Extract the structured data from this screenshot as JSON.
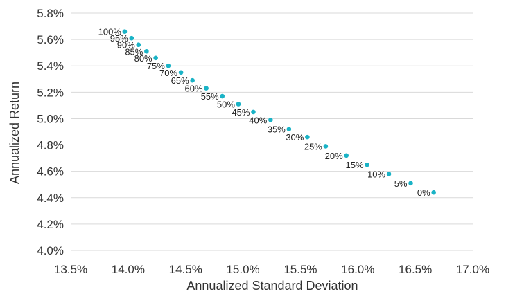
{
  "chart_data": {
    "type": "scatter",
    "xlabel": "Annualized Standard Deviation",
    "ylabel": "Annualized Return",
    "xlim": [
      13.5,
      17.0
    ],
    "ylim": [
      4.0,
      5.8
    ],
    "x_ticks": [
      "13.5%",
      "14.0%",
      "14.5%",
      "15.0%",
      "15.5%",
      "16.0%",
      "16.5%",
      "17.0%"
    ],
    "y_ticks": [
      "4.0%",
      "4.2%",
      "4.4%",
      "4.6%",
      "4.8%",
      "5.0%",
      "5.2%",
      "5.4%",
      "5.6%",
      "5.8%"
    ],
    "grid": "horizontal",
    "colors": {
      "point": "#1ab3c6",
      "grid": "#d9d9d9",
      "text": "#333333"
    },
    "points": [
      {
        "label": "100%",
        "x": 13.97,
        "y": 5.66
      },
      {
        "label": "95%",
        "x": 14.03,
        "y": 5.61
      },
      {
        "label": "90%",
        "x": 14.09,
        "y": 5.56
      },
      {
        "label": "85%",
        "x": 14.16,
        "y": 5.51
      },
      {
        "label": "80%",
        "x": 14.24,
        "y": 5.46
      },
      {
        "label": "75%",
        "x": 14.35,
        "y": 5.4
      },
      {
        "label": "70%",
        "x": 14.46,
        "y": 5.35
      },
      {
        "label": "65%",
        "x": 14.56,
        "y": 5.29
      },
      {
        "label": "60%",
        "x": 14.68,
        "y": 5.23
      },
      {
        "label": "55%",
        "x": 14.82,
        "y": 5.17
      },
      {
        "label": "50%",
        "x": 14.96,
        "y": 5.11
      },
      {
        "label": "45%",
        "x": 15.09,
        "y": 5.05
      },
      {
        "label": "40%",
        "x": 15.24,
        "y": 4.99
      },
      {
        "label": "35%",
        "x": 15.4,
        "y": 4.92
      },
      {
        "label": "30%",
        "x": 15.56,
        "y": 4.86
      },
      {
        "label": "25%",
        "x": 15.72,
        "y": 4.79
      },
      {
        "label": "20%",
        "x": 15.9,
        "y": 4.72
      },
      {
        "label": "15%",
        "x": 16.08,
        "y": 4.65
      },
      {
        "label": "10%",
        "x": 16.27,
        "y": 4.58
      },
      {
        "label": "5%",
        "x": 16.46,
        "y": 4.51
      },
      {
        "label": "0%",
        "x": 16.66,
        "y": 4.44
      }
    ]
  }
}
